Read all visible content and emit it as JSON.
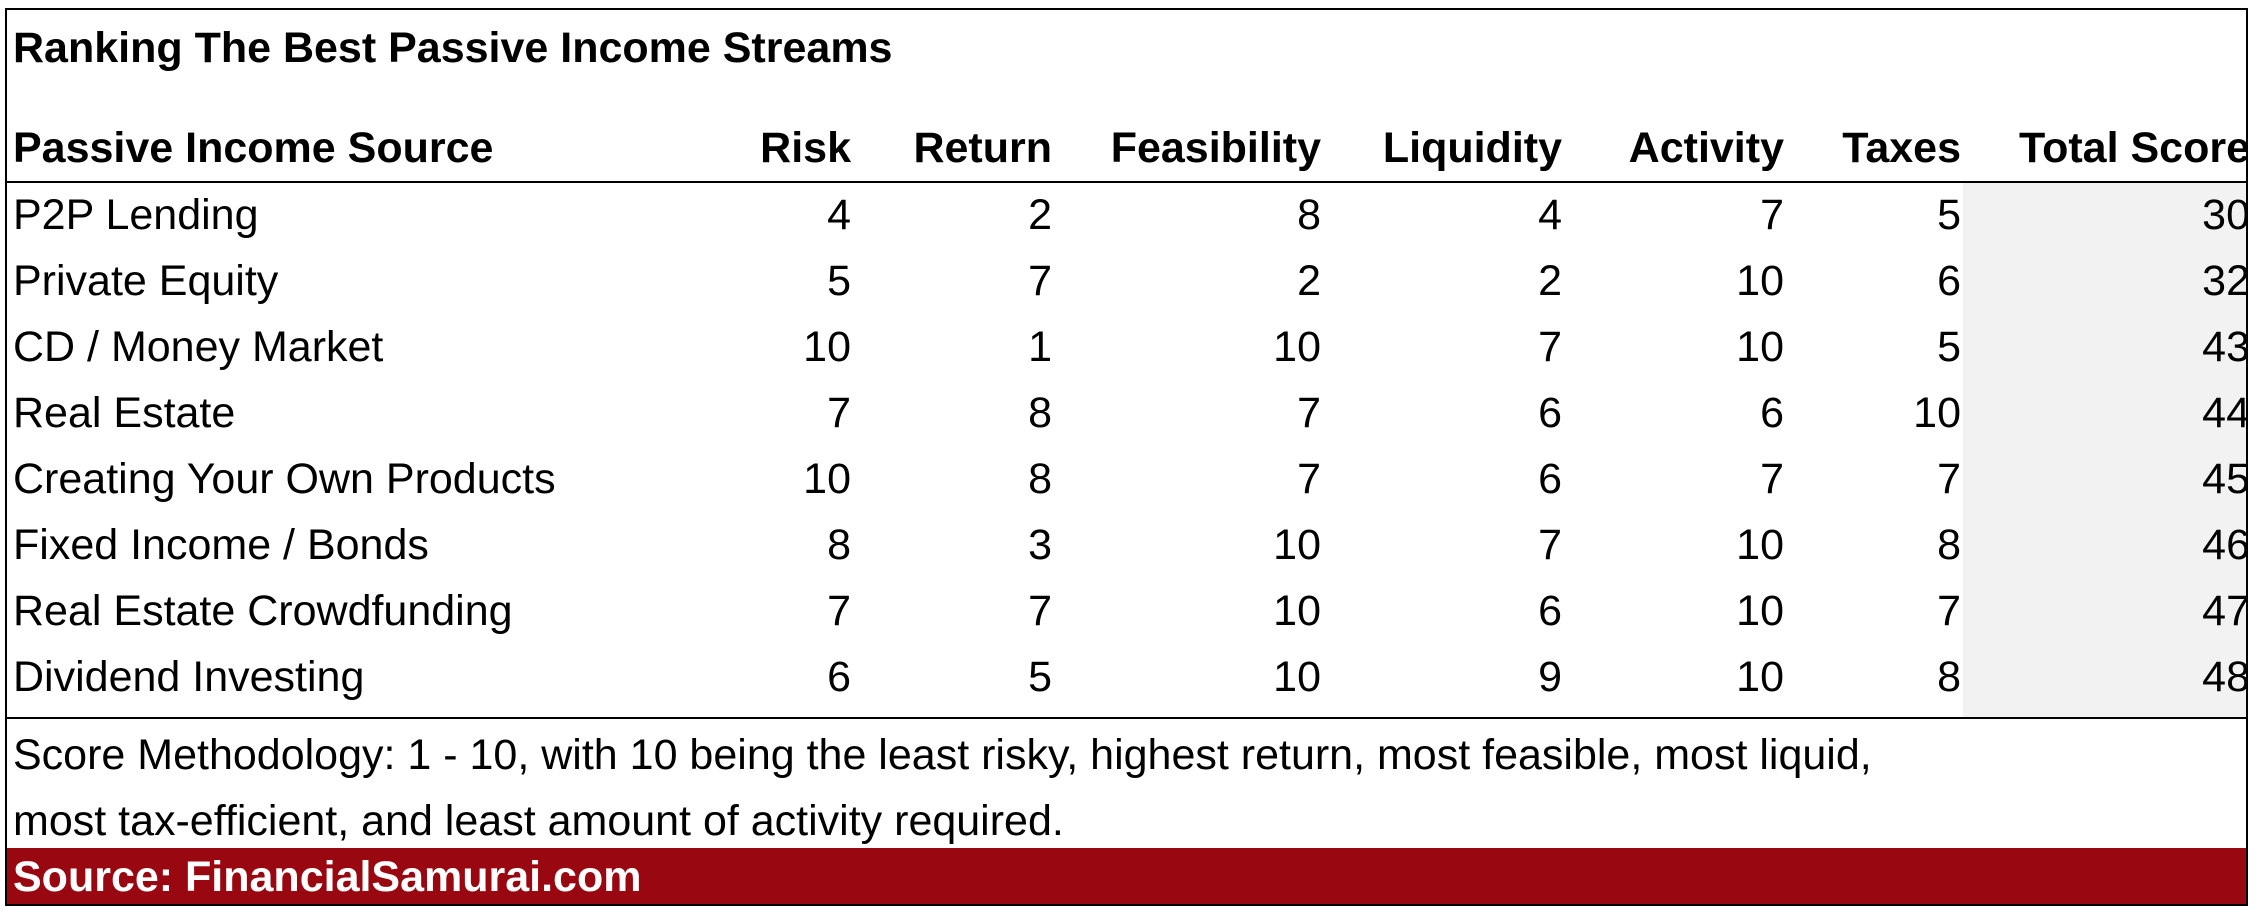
{
  "chart_data": {
    "type": "table",
    "title": "Ranking The Best Passive Income Streams",
    "columns": [
      "Passive Income Source",
      "Risk",
      "Return",
      "Feasibility",
      "Liquidity",
      "Activity",
      "Taxes",
      "Total Score"
    ],
    "rows": [
      {
        "source": "P2P Lending",
        "values": [
          4,
          2,
          8,
          4,
          7,
          5,
          30
        ]
      },
      {
        "source": "Private Equity",
        "values": [
          5,
          7,
          2,
          2,
          10,
          6,
          32
        ]
      },
      {
        "source": "CD / Money Market",
        "values": [
          10,
          1,
          10,
          7,
          10,
          5,
          43
        ]
      },
      {
        "source": "Real Estate",
        "values": [
          7,
          8,
          7,
          6,
          6,
          10,
          44
        ]
      },
      {
        "source": "Creating Your Own Products",
        "values": [
          10,
          8,
          7,
          6,
          7,
          7,
          45
        ]
      },
      {
        "source": "Fixed Income / Bonds",
        "values": [
          8,
          3,
          10,
          7,
          10,
          8,
          46
        ]
      },
      {
        "source": "Real Estate Crowdfunding",
        "values": [
          7,
          7,
          10,
          6,
          10,
          7,
          47
        ]
      },
      {
        "source": "Dividend Investing",
        "values": [
          6,
          5,
          10,
          9,
          10,
          8,
          48
        ]
      }
    ],
    "notes": [
      "Score Methodology: 1 - 10, with 10 being the least risky, highest return, most feasible, most liquid,",
      "most tax-efficient, and least amount of activity required."
    ],
    "source": "Source: FinancialSamurai.com"
  },
  "colors": {
    "source_bar": "#990711",
    "source_text": "#ffffff",
    "total_score_shade": "#f2f2f2"
  }
}
